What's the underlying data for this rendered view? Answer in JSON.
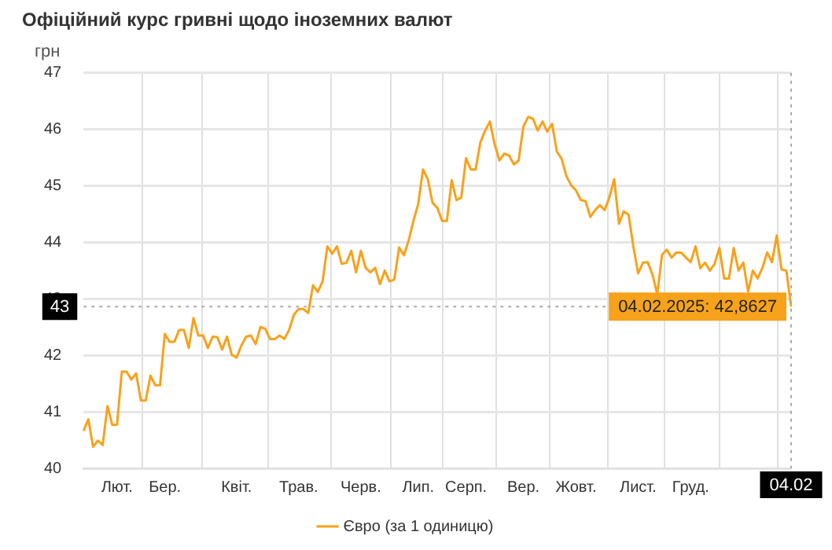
{
  "chart_data": {
    "type": "line",
    "title": "Офіційний курс гривні щодо іноземних валют",
    "ylabel": "грн",
    "categories": [
      null,
      null,
      null,
      null,
      null,
      null,
      null,
      "Лют.",
      null,
      null,
      null,
      null,
      null,
      null,
      null,
      null,
      null,
      "Бер.",
      null,
      null,
      null,
      null,
      null,
      null,
      null,
      null,
      null,
      null,
      null,
      null,
      null,
      null,
      "Квіт.",
      null,
      null,
      null,
      null,
      null,
      null,
      null,
      null,
      null,
      null,
      null,
      null,
      "Трав.",
      null,
      null,
      null,
      null,
      null,
      null,
      null,
      null,
      null,
      null,
      null,
      null,
      "Черв.",
      null,
      null,
      null,
      null,
      null,
      null,
      null,
      null,
      null,
      null,
      null,
      "Лип.",
      null,
      null,
      null,
      null,
      null,
      null,
      null,
      null,
      null,
      "Серп.",
      null,
      null,
      null,
      null,
      null,
      null,
      null,
      null,
      null,
      null,
      null,
      "Вер.",
      null,
      null,
      null,
      null,
      null,
      null,
      null,
      null,
      null,
      null,
      "Жовт.",
      null,
      null,
      null,
      null,
      null,
      null,
      null,
      null,
      null,
      null,
      null,
      null,
      "Лист.",
      null,
      null,
      null,
      null,
      null,
      null,
      null,
      null,
      null,
      null,
      "Груд.",
      null,
      null,
      null,
      null,
      null,
      null,
      null,
      null,
      null,
      null,
      null,
      null,
      null,
      null,
      null,
      null,
      null,
      null,
      null,
      null,
      "04.02"
    ],
    "series": [
      {
        "name": "Євро (за 1 одиницю)",
        "color": "#f7a21b",
        "values": [
          40.66,
          40.87,
          40.38,
          40.49,
          40.41,
          41.1,
          40.77,
          40.77,
          41.71,
          41.71,
          41.57,
          41.68,
          41.2,
          41.2,
          41.64,
          41.47,
          41.47,
          42.38,
          42.24,
          42.24,
          42.45,
          42.45,
          42.13,
          42.66,
          42.35,
          42.35,
          42.13,
          42.33,
          42.32,
          42.1,
          42.33,
          42.01,
          41.96,
          42.17,
          42.33,
          42.35,
          42.2,
          42.5,
          42.47,
          42.29,
          42.29,
          42.35,
          42.29,
          42.45,
          42.72,
          42.82,
          42.82,
          42.75,
          43.24,
          43.12,
          43.31,
          43.93,
          43.8,
          43.93,
          43.62,
          43.64,
          43.85,
          43.47,
          43.85,
          43.55,
          43.47,
          43.55,
          43.26,
          43.5,
          43.31,
          43.34,
          43.91,
          43.77,
          44.03,
          44.38,
          44.68,
          45.29,
          45.12,
          44.7,
          44.61,
          44.38,
          44.38,
          45.1,
          44.75,
          44.79,
          45.49,
          45.29,
          45.29,
          45.77,
          45.98,
          46.14,
          45.73,
          45.45,
          45.57,
          45.54,
          45.38,
          45.45,
          46.05,
          46.22,
          46.19,
          45.98,
          46.14,
          45.96,
          46.1,
          45.61,
          45.48,
          45.17,
          45.01,
          44.92,
          44.75,
          44.73,
          44.45,
          44.57,
          44.66,
          44.57,
          44.8,
          45.12,
          44.33,
          44.55,
          44.49,
          43.93,
          43.45,
          43.64,
          43.65,
          43.43,
          43.08,
          43.78,
          43.87,
          43.73,
          43.82,
          43.82,
          43.73,
          43.65,
          43.93,
          43.54,
          43.64,
          43.5,
          43.62,
          43.9,
          43.36,
          43.36,
          43.9,
          43.5,
          43.64,
          43.13,
          43.5,
          43.36,
          43.55,
          43.82,
          43.65,
          44.12,
          43.52,
          43.5,
          42.8627
        ]
      }
    ],
    "ylim": [
      40,
      47
    ],
    "yticks": [
      40,
      41,
      42,
      43,
      44,
      45,
      46,
      47
    ],
    "ref_lines": [
      {
        "axis": "y",
        "value": 42.8627,
        "label": "43",
        "line_style": "dotted",
        "color": "#aaaaaa"
      },
      {
        "axis": "x",
        "value": "04.02",
        "line_style": "dotted",
        "color": "#aaaaaa"
      }
    ],
    "annotations": [
      {
        "text": "04.02.2025: 42,8627",
        "x": "04.02",
        "y": 42.8627
      }
    ],
    "grid": true,
    "legend": "bottom",
    "marker": "none",
    "line_style": "solid"
  }
}
